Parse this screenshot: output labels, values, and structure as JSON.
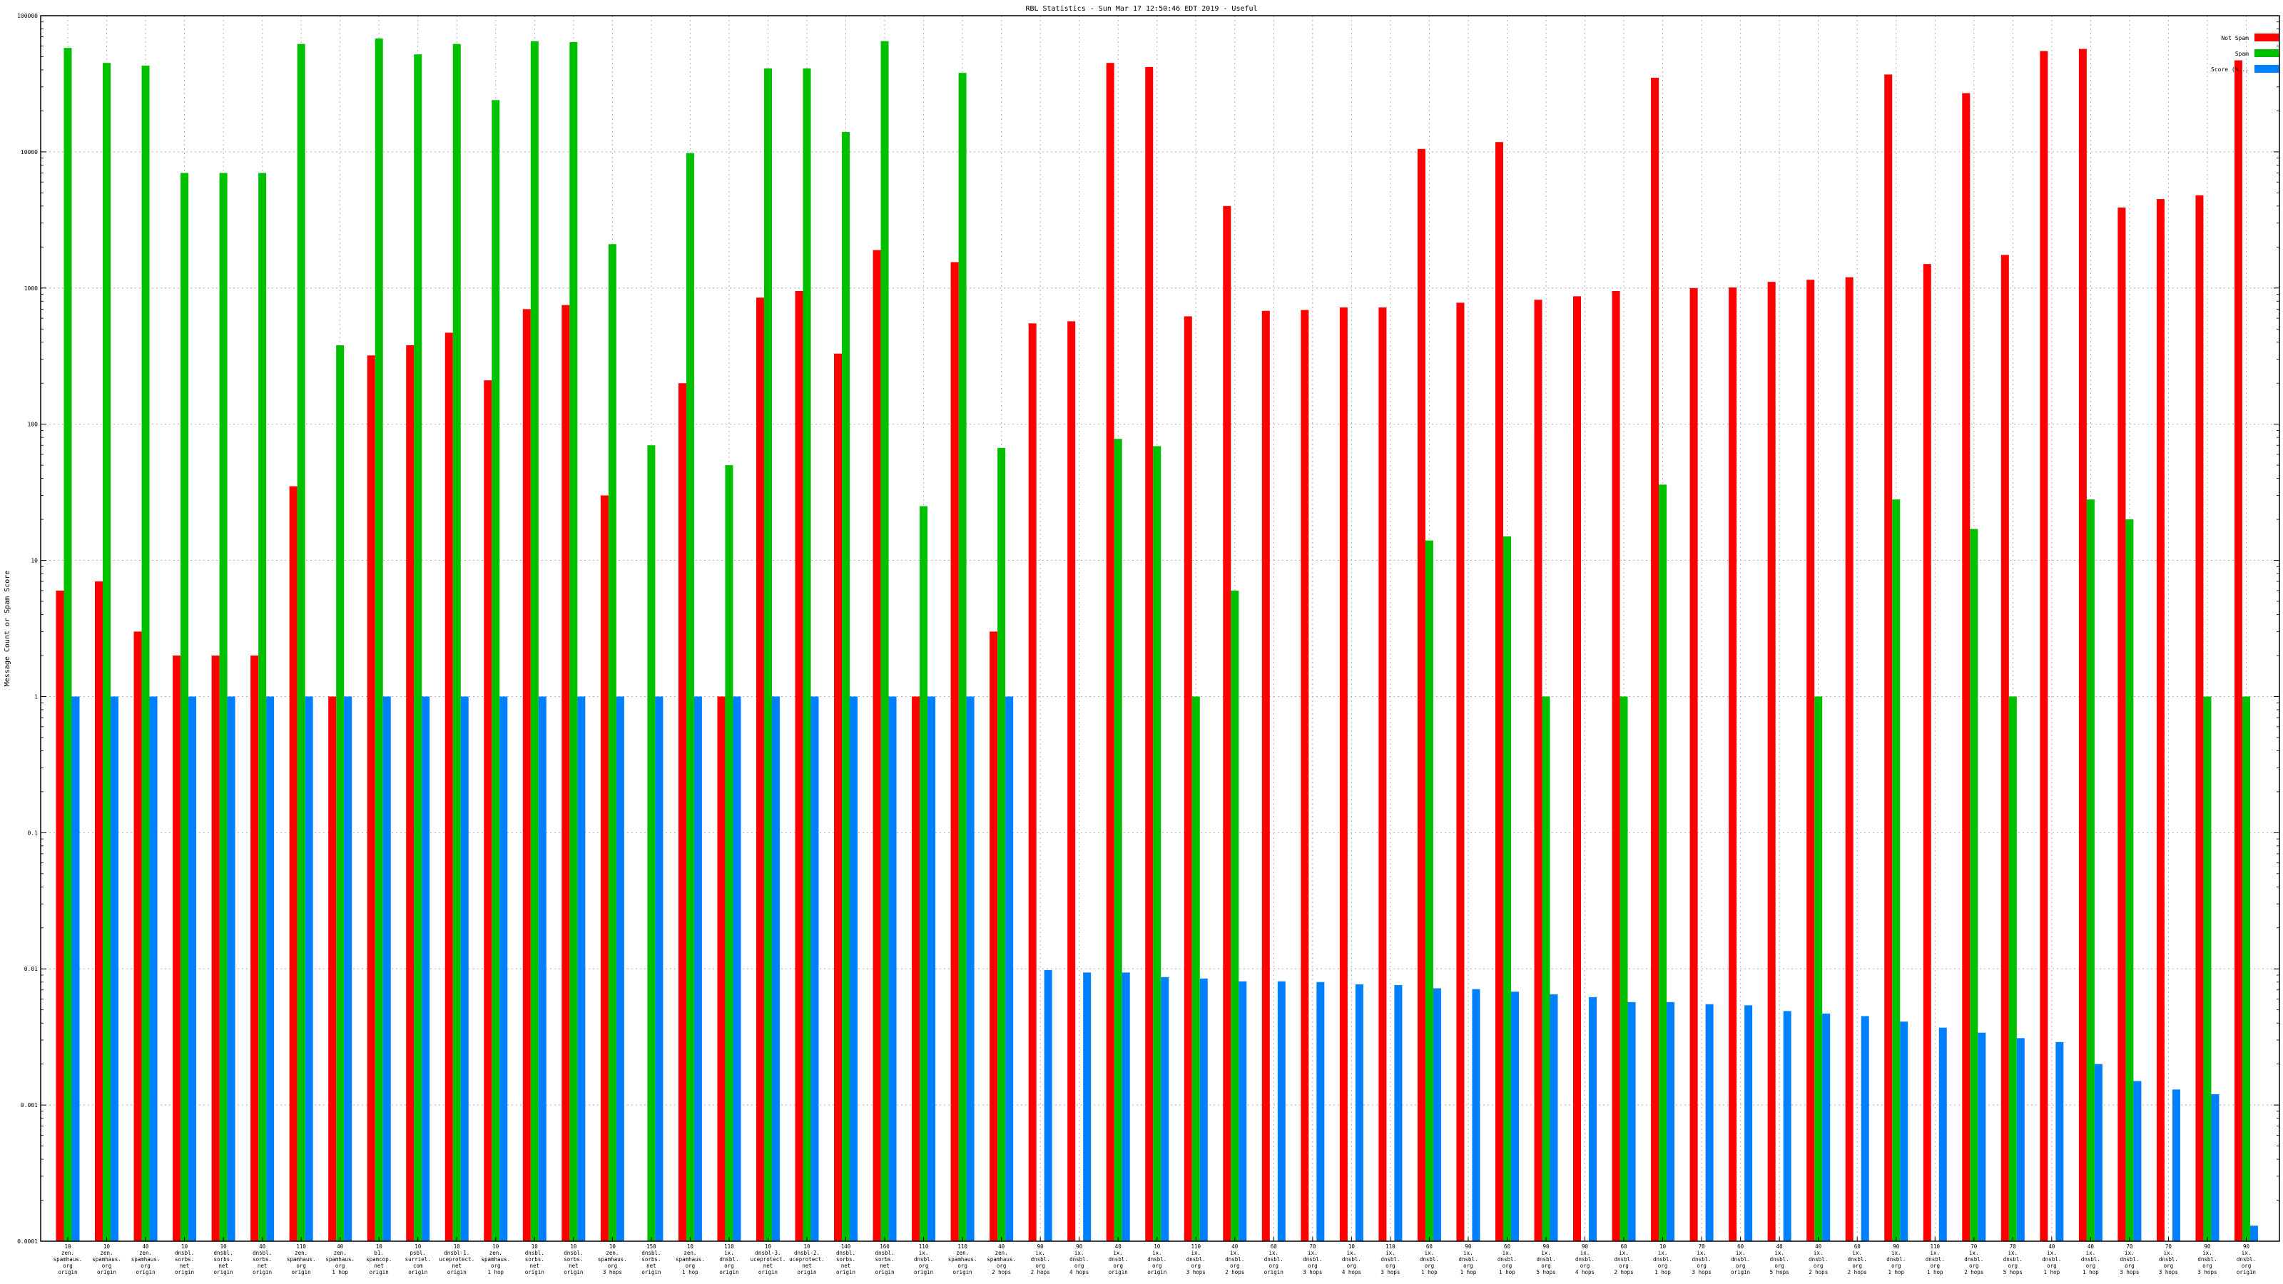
{
  "chart_data": {
    "type": "bar",
    "title": "RBL Statistics - Sun Mar 17 12:50:46 EDT 2019 - Useful",
    "xlabel": "",
    "ylabel": "Message Count or Spam Score",
    "yscale": "log",
    "ylim": [
      0.0001,
      100000
    ],
    "yticks": [
      "0.0001",
      "0.001",
      "0.01",
      "0.1",
      "1",
      "10",
      "100",
      "1000",
      "10000",
      "100000"
    ],
    "grid": true,
    "legend_position": "top-right",
    "colors": {
      "not_spam": "#ff0000",
      "spam": "#00c000",
      "score": "#0080ff"
    },
    "categories": [
      [
        "10",
        "zen.",
        "spamhaus.",
        "org",
        "origin"
      ],
      [
        "10",
        "zen.",
        "spamhaus.",
        "org",
        "origin"
      ],
      [
        "40",
        "zen.",
        "spamhaus.",
        "org",
        "origin"
      ],
      [
        "10",
        "dnsbl.",
        "sorbs.",
        "net",
        "origin"
      ],
      [
        "10",
        "dnsbl.",
        "sorbs.",
        "net",
        "origin"
      ],
      [
        "40",
        "dnsbl.",
        "sorbs.",
        "net",
        "origin"
      ],
      [
        "110",
        "zen.",
        "spamhaus.",
        "org",
        "origin"
      ],
      [
        "40",
        "zen.",
        "spamhaus.",
        "org",
        "1 hop"
      ],
      [
        "10",
        "b1.",
        "spamcop.",
        "net",
        "origin"
      ],
      [
        "10",
        "psbl.",
        "surriel.",
        "com",
        "origin"
      ],
      [
        "10",
        "dnsbl-1.",
        "uceprotect.",
        "net",
        "origin"
      ],
      [
        "10",
        "zen.",
        "spamhaus.",
        "org",
        "1 hop"
      ],
      [
        "10",
        "dnsbl.",
        "sorbs.",
        "net",
        "origin"
      ],
      [
        "10",
        "dnsbl.",
        "sorbs.",
        "net",
        "origin"
      ],
      [
        "10",
        "zen.",
        "spamhaus.",
        "org",
        "3 hops"
      ],
      [
        "150",
        "dnsbl.",
        "sorbs.",
        "net",
        "origin"
      ],
      [
        "10",
        "zen.",
        "spamhaus.",
        "org",
        "1 hop"
      ],
      [
        "110",
        "ix.",
        "dnsbl.",
        "org",
        "origin"
      ],
      [
        "10",
        "dnsbl-3.",
        "uceprotect.",
        "net",
        "origin"
      ],
      [
        "10",
        "dnsbl-2.",
        "uceprotect.",
        "net",
        "origin"
      ],
      [
        "140",
        "dnsbl.",
        "sorbs.",
        "net",
        "origin"
      ],
      [
        "160",
        "dnsbl.",
        "sorbs.",
        "net",
        "origin"
      ],
      [
        "110",
        "ix.",
        "dnsbl.",
        "org",
        "origin"
      ],
      [
        "110",
        "zen.",
        "spamhaus.",
        "org",
        "origin"
      ],
      [
        "40",
        "zen.",
        "spamhaus.",
        "org",
        "2 hops"
      ],
      [
        "90",
        "ix.",
        "dnsbl.",
        "org",
        "2 hops"
      ],
      [
        "90",
        "ix.",
        "dnsbl.",
        "org",
        "4 hops"
      ],
      [
        "40",
        "ix.",
        "dnsbl.",
        "org",
        "origin"
      ],
      [
        "10",
        "ix.",
        "dnsbl.",
        "org",
        "origin"
      ],
      [
        "110",
        "ix.",
        "dnsbl.",
        "org",
        "3 hops"
      ],
      [
        "40",
        "ix.",
        "dnsbl.",
        "org",
        "2 hops"
      ],
      [
        "60",
        "ix.",
        "dnsbl.",
        "org",
        "origin"
      ],
      [
        "70",
        "ix.",
        "dnsbl.",
        "org",
        "3 hops"
      ],
      [
        "10",
        "ix.",
        "dnsbl.",
        "org",
        "4 hops"
      ],
      [
        "110",
        "ix.",
        "dnsbl.",
        "org",
        "3 hops"
      ],
      [
        "60",
        "ix.",
        "dnsbl.",
        "org",
        "1 hop"
      ],
      [
        "90",
        "ix.",
        "dnsbl.",
        "org",
        "1 hop"
      ],
      [
        "60",
        "ix.",
        "dnsbl.",
        "org",
        "1 hop"
      ],
      [
        "90",
        "ix.",
        "dnsbl.",
        "org",
        "5 hops"
      ],
      [
        "90",
        "ix.",
        "dnsbl.",
        "org",
        "4 hops"
      ],
      [
        "60",
        "ix.",
        "dnsbl.",
        "org",
        "2 hops"
      ],
      [
        "10",
        "ix.",
        "dnsbl.",
        "org",
        "1 hop"
      ],
      [
        "70",
        "ix.",
        "dnsbl.",
        "org",
        "3 hops"
      ],
      [
        "60",
        "ix.",
        "dnsbl.",
        "org",
        "origin"
      ],
      [
        "40",
        "ix.",
        "dnsbl.",
        "org",
        "5 hops"
      ],
      [
        "40",
        "ix.",
        "dnsbl.",
        "org",
        "2 hops"
      ],
      [
        "60",
        "ix.",
        "dnsbl.",
        "org",
        "2 hops"
      ],
      [
        "90",
        "ix.",
        "dnsbl.",
        "org",
        "1 hop"
      ],
      [
        "110",
        "ix.",
        "dnsbl.",
        "org",
        "1 hop"
      ],
      [
        "70",
        "ix.",
        "dnsbl.",
        "org",
        "2 hops"
      ],
      [
        "70",
        "ix.",
        "dnsbl.",
        "org",
        "5 hops"
      ],
      [
        "40",
        "ix.",
        "dnsbl.",
        "org",
        "1 hop"
      ],
      [
        "40",
        "ix.",
        "dnsbl.",
        "org",
        "1 hop"
      ],
      [
        "70",
        "ix.",
        "dnsbl.",
        "org",
        "3 hops"
      ],
      [
        "70",
        "ix.",
        "dnsbl.",
        "org",
        "3 hops"
      ],
      [
        "90",
        "ix.",
        "dnsbl.",
        "org",
        "3 hops"
      ],
      [
        "90",
        "ix.",
        "dnsbl.",
        "org",
        "origin"
      ]
    ],
    "series": [
      {
        "name": "Not Spam",
        "values": [
          6,
          7,
          3,
          2,
          2,
          2,
          35,
          1,
          320,
          380,
          470,
          210,
          700,
          750,
          30,
          null,
          200,
          1,
          850,
          950,
          330,
          1900,
          1,
          1550,
          3,
          550,
          570,
          45000,
          42000,
          620,
          4000,
          680,
          690,
          720,
          720,
          10500,
          780,
          11800,
          820,
          870,
          950,
          35000,
          1000,
          1010,
          1110,
          1150,
          1200,
          37000,
          1500,
          27000,
          1750,
          55000,
          57000,
          3900,
          4500,
          4800,
          47000
        ]
      },
      {
        "name": "Spam",
        "values": [
          58000,
          45000,
          43000,
          7000,
          7000,
          7000,
          62000,
          380,
          68000,
          52000,
          62000,
          24000,
          65000,
          64000,
          2100,
          70,
          9800,
          50,
          41000,
          41000,
          14000,
          65000,
          25,
          38000,
          67,
          null,
          null,
          78,
          69,
          1,
          6,
          null,
          null,
          null,
          null,
          14,
          null,
          15,
          1,
          null,
          1,
          36,
          null,
          null,
          null,
          1,
          null,
          28,
          null,
          17,
          1,
          null,
          28,
          20,
          null,
          1,
          1
        ]
      },
      {
        "name": "Score (%...",
        "values": [
          1,
          1,
          1,
          1,
          1,
          1,
          1,
          1,
          1,
          1,
          1,
          1,
          1,
          1,
          1,
          1,
          1,
          1,
          1,
          1,
          1,
          1,
          1,
          1,
          1,
          0.0098,
          0.0094,
          0.0094,
          0.0087,
          0.0085,
          0.0081,
          0.0081,
          0.008,
          0.0077,
          0.0076,
          0.0072,
          0.0071,
          0.0068,
          0.0065,
          0.0062,
          0.0057,
          0.0057,
          0.0055,
          0.0054,
          0.0049,
          0.0047,
          0.0045,
          0.0041,
          0.0037,
          0.0034,
          0.0031,
          0.0029,
          0.002,
          0.0015,
          0.0013,
          0.0012,
          0.00013
        ]
      }
    ]
  }
}
